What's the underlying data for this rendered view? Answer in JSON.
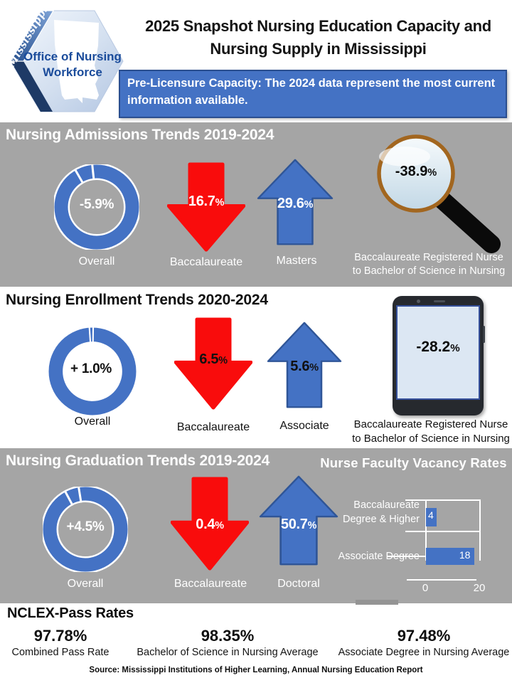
{
  "header": {
    "logo": {
      "state_script": "Mississippi",
      "org_line1": "Office of Nursing",
      "org_line2": "Workforce"
    },
    "title_line1": "2025 Snapshot Nursing Education Capacity and",
    "title_line2": "Nursing Supply in Mississippi",
    "banner_text": "Pre-Licensure Capacity: The 2024 data represent the most current information available."
  },
  "admissions": {
    "heading": "Nursing Admissions Trends 2019-2024",
    "overall_value": "-5.9%",
    "overall_label": "Overall",
    "down_value": "16.7%",
    "down_label": "Baccalaureate",
    "up_value": "29.6%",
    "up_label": "Masters",
    "callout_value": "-38.9%",
    "callout_caption_line1": "Baccalaureate Registered Nurse",
    "callout_caption_line2": "to Bachelor of Science in Nursing"
  },
  "enrollment": {
    "heading": "Nursing Enrollment Trends 2020-2024",
    "overall_value": "+ 1.0%",
    "overall_label": "Overall",
    "down_value": "6.5%",
    "down_label": "Baccalaureate",
    "up_value": "5.6%",
    "up_label": "Associate",
    "callout_value": "-28.2%",
    "callout_caption_line1": "Baccalaureate Registered Nurse",
    "callout_caption_line2": "to Bachelor of Science in Nursing"
  },
  "graduation": {
    "heading": "Nursing Graduation Trends 2019-2024",
    "overall_value": "+4.5%",
    "overall_label": "Overall",
    "down_value": "0.4%",
    "down_label": "Baccalaureate",
    "up_value": "50.7%",
    "up_label": "Doctoral"
  },
  "chart_data": [
    {
      "type": "bar",
      "orientation": "horizontal",
      "title": "Nurse Faculty Vacancy Rates",
      "categories": [
        "Baccalaureate Degree & Higher",
        "Associate Degree"
      ],
      "values": [
        4,
        18
      ],
      "xlim": [
        0,
        20
      ],
      "xlabel": "",
      "ylabel": "",
      "grid": true,
      "legend": false,
      "bar_color": "#4472C4"
    },
    {
      "type": "table",
      "title": "Nursing Admissions Trends 2019-2024",
      "categories": [
        "Overall",
        "Baccalaureate",
        "Masters",
        "Baccalaureate Registered Nurse to Bachelor of Science in Nursing"
      ],
      "values": [
        -5.9,
        -16.7,
        29.6,
        -38.9
      ],
      "unit": "percent change"
    },
    {
      "type": "table",
      "title": "Nursing Enrollment Trends 2020-2024",
      "categories": [
        "Overall",
        "Baccalaureate",
        "Associate",
        "Baccalaureate Registered Nurse to Bachelor of Science in Nursing"
      ],
      "values": [
        1.0,
        -6.5,
        5.6,
        -28.2
      ],
      "unit": "percent change"
    },
    {
      "type": "table",
      "title": "Nursing Graduation Trends 2019-2024",
      "categories": [
        "Overall",
        "Baccalaureate",
        "Doctoral"
      ],
      "values": [
        4.5,
        -0.4,
        50.7
      ],
      "unit": "percent change"
    },
    {
      "type": "table",
      "title": "NCLEX-Pass Rates",
      "categories": [
        "Combined Pass Rate",
        "Bachelor of Science in Nursing Average",
        "Associate Degree in Nursing Average"
      ],
      "values": [
        97.78,
        98.35,
        97.48
      ],
      "unit": "percent"
    }
  ],
  "nclex": {
    "heading": "NCLEX-Pass Rates",
    "stats": [
      {
        "value": "97.78%",
        "label": "Combined Pass Rate"
      },
      {
        "value": "98.35%",
        "label": "Bachelor of Science in Nursing Average"
      },
      {
        "value": "97.48%",
        "label": "Associate Degree in Nursing Average"
      }
    ]
  },
  "source": "Source: Mississippi Institutions of Higher Learning, Annual Nursing Education Report",
  "colors": {
    "accent_blue": "#4472C4",
    "accent_blue_dark": "#2F5597",
    "alert_red": "#F90C0C",
    "section_gray": "#A5A5A5",
    "magnifier_rim": "#A2661F"
  }
}
